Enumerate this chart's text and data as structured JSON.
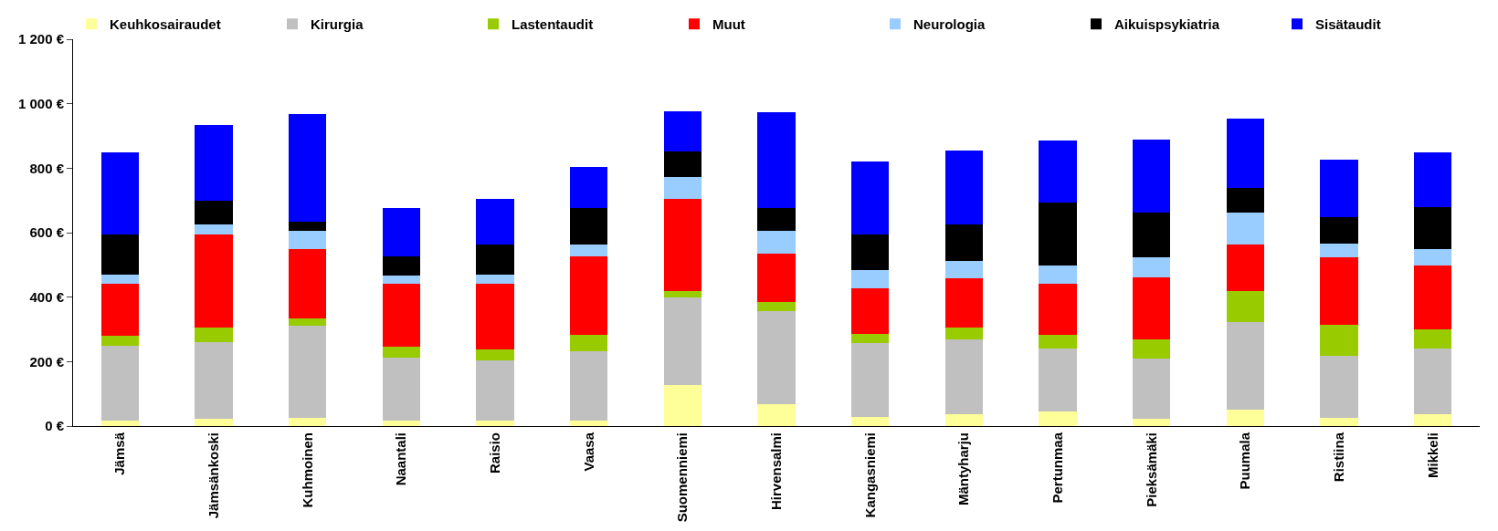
{
  "chart_data": {
    "type": "bar",
    "stacked": true,
    "legend": "top",
    "categories": [
      "Jämsä",
      "Jämsänkoski",
      "Kuhmoinen",
      "Naantali",
      "Raisio",
      "Vaasa",
      "Suomenniemi",
      "Hirvensalmi",
      "Kangasniemi",
      "Mäntyharju",
      "Pertunmaa",
      "Pieksämäki",
      "Puumala",
      "Ristiina",
      "Mikkeli"
    ],
    "ylim": [
      0,
      1200
    ],
    "yticks": [
      {
        "value": 0,
        "label": "0 €"
      },
      {
        "value": 200,
        "label": "200 €"
      },
      {
        "value": 400,
        "label": "400 €"
      },
      {
        "value": 600,
        "label": "600 €"
      },
      {
        "value": 800,
        "label": "800 €"
      },
      {
        "value": 1000,
        "label": "1 000 €"
      },
      {
        "value": 1200,
        "label": "1 200 €"
      }
    ],
    "series": [
      {
        "name": "Keuhkosairaudet",
        "color": "#ffff99",
        "values": [
          16,
          22,
          25,
          16,
          16,
          16,
          128,
          69,
          28,
          36,
          44,
          22,
          50,
          25,
          36
        ]
      },
      {
        "name": "Kirurgia",
        "color": "#c0c0c0",
        "values": [
          234,
          237,
          285,
          196,
          187,
          215,
          271,
          288,
          229,
          232,
          196,
          187,
          274,
          193,
          204
        ]
      },
      {
        "name": "Lastentaudit",
        "color": "#99cc00",
        "values": [
          29,
          48,
          25,
          34,
          34,
          51,
          20,
          28,
          30,
          39,
          44,
          59,
          95,
          97,
          59
        ]
      },
      {
        "name": "Muut",
        "color": "#ff0000",
        "values": [
          162,
          288,
          213,
          195,
          204,
          244,
          285,
          149,
          141,
          151,
          157,
          193,
          145,
          210,
          198
        ]
      },
      {
        "name": "Neurologia",
        "color": "#99ccff",
        "values": [
          28,
          30,
          58,
          25,
          28,
          38,
          70,
          72,
          55,
          53,
          56,
          64,
          98,
          42,
          53
        ]
      },
      {
        "name": "Aikuispsykiatria",
        "color": "#000000",
        "values": [
          126,
          74,
          28,
          60,
          95,
          112,
          79,
          70,
          110,
          115,
          196,
          137,
          76,
          81,
          129
        ]
      },
      {
        "name": "Sisätaudit",
        "color": "#0000ff",
        "values": [
          255,
          235,
          333,
          150,
          140,
          129,
          123,
          297,
          229,
          229,
          193,
          227,
          216,
          179,
          171
        ]
      }
    ]
  }
}
